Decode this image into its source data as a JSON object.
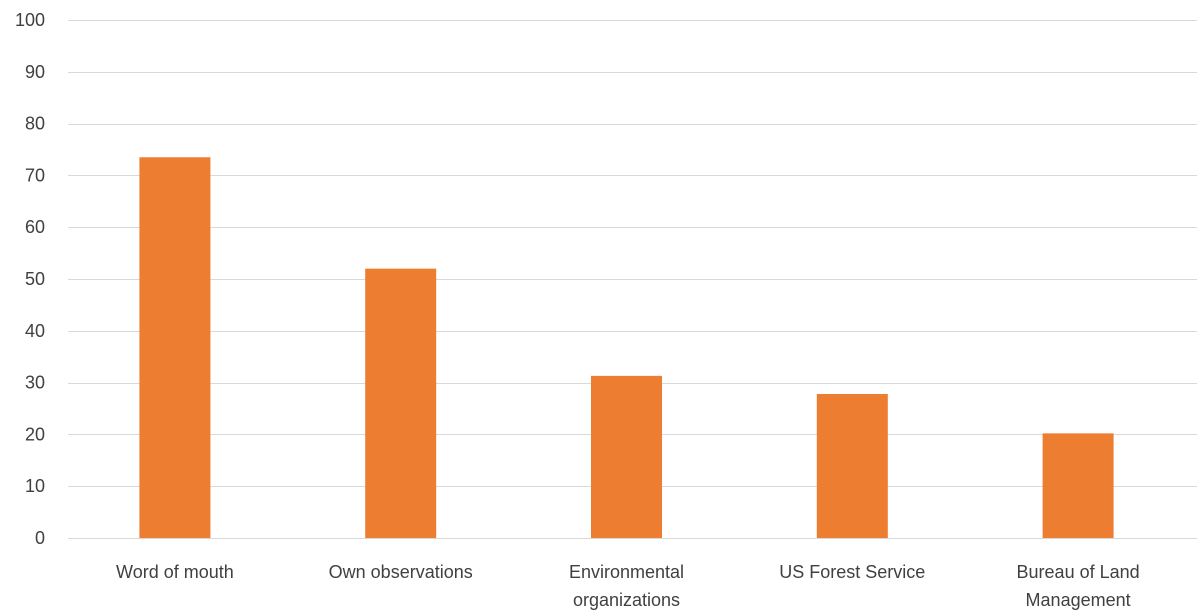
{
  "chart_data": {
    "type": "bar",
    "title": "",
    "xlabel": "",
    "ylabel": "",
    "categories": [
      [
        "Word of mouth"
      ],
      [
        "Own observations"
      ],
      [
        "Environmental",
        "organizations"
      ],
      [
        "US Forest Service"
      ],
      [
        "Bureau of Land",
        "Management"
      ]
    ],
    "values": [
      73.5,
      52,
      31.3,
      27.8,
      20.2
    ],
    "ylim": [
      0,
      100
    ],
    "yticks": [
      0,
      10,
      20,
      30,
      40,
      50,
      60,
      70,
      80,
      90,
      100
    ],
    "grid": true,
    "legend": "none",
    "colors": {
      "bar": "#ed7d31",
      "grid": "#d9d9d9",
      "text": "#404040"
    }
  }
}
